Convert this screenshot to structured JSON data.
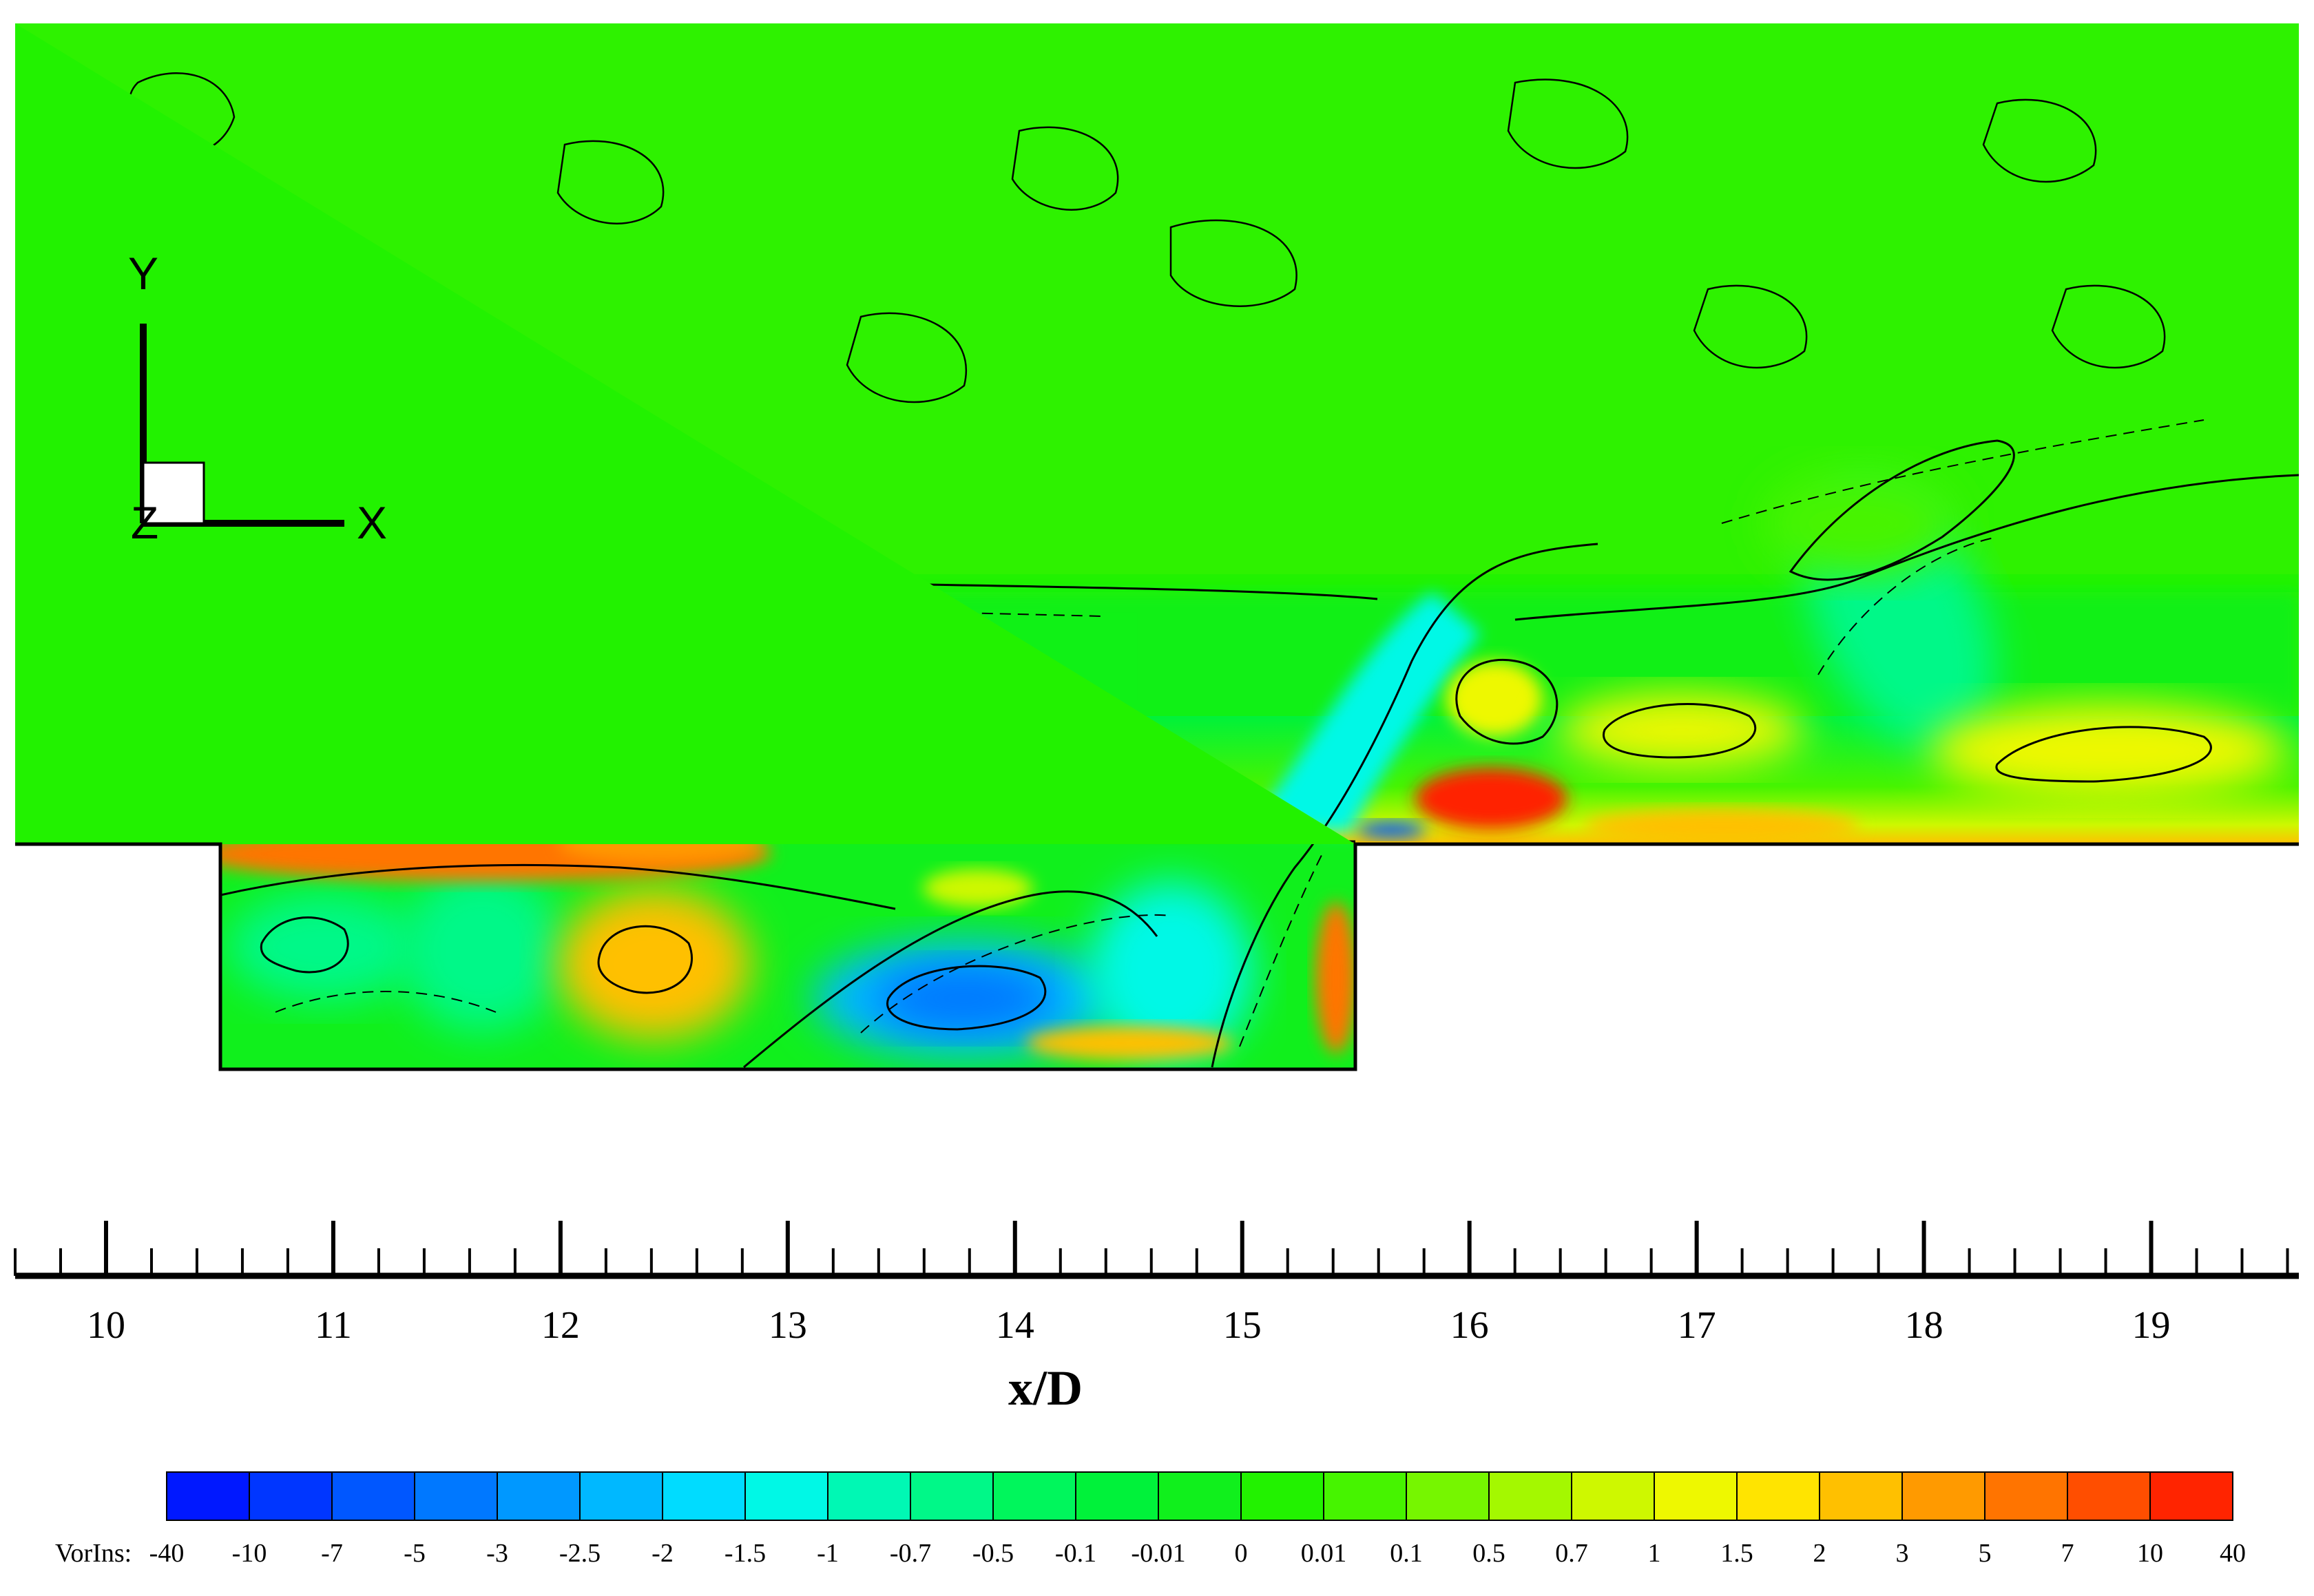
{
  "chart_data": {
    "type": "heatmap",
    "title": "",
    "xlabel": "x/D",
    "ylabel": "",
    "xlim": [
      9.6,
      19.65
    ],
    "x_ticks": [
      10,
      11,
      12,
      13,
      14,
      15,
      16,
      17,
      18,
      19
    ],
    "x_minor_step": 0.2,
    "grid": false,
    "cavity": {
      "x_start": 10.5,
      "x_end": 15.5
    },
    "contour_variable": "VorIns",
    "contour_levels": [
      -40,
      -10,
      -7,
      -5,
      -3,
      -2.5,
      -2,
      -1.5,
      -1,
      -0.7,
      -0.5,
      -0.1,
      -0.01,
      0,
      0.01,
      0.1,
      0.5,
      0.7,
      1,
      1.5,
      2,
      3,
      5,
      7,
      10,
      40
    ],
    "contour_level_labels": [
      "-40",
      "-10",
      "-7",
      "-5",
      "-3",
      "-2.5",
      "-2",
      "-1.5",
      "-1",
      "-0.7",
      "-0.5",
      "-0.1",
      "-0.01",
      "0",
      "0.01",
      "0.1",
      "0.5",
      "0.7",
      "1",
      "1.5",
      "2",
      "3",
      "5",
      "7",
      "10",
      "40"
    ],
    "band_colors": [
      "#0018ff",
      "#0036ff",
      "#0057ff",
      "#0078ff",
      "#0098ff",
      "#00b8ff",
      "#00dcff",
      "#00f8e6",
      "#00f8b4",
      "#00f888",
      "#00f65c",
      "#00f23a",
      "#10f01c",
      "#22f200",
      "#46f400",
      "#76f600",
      "#a4f800",
      "#cef800",
      "#eef800",
      "#ffe400",
      "#ffc000",
      "#ff9a00",
      "#ff7400",
      "#ff4e00",
      "#ff2400"
    ],
    "legend_placement": "bottom",
    "axis_triad": [
      "X",
      "Y",
      "Z"
    ]
  }
}
